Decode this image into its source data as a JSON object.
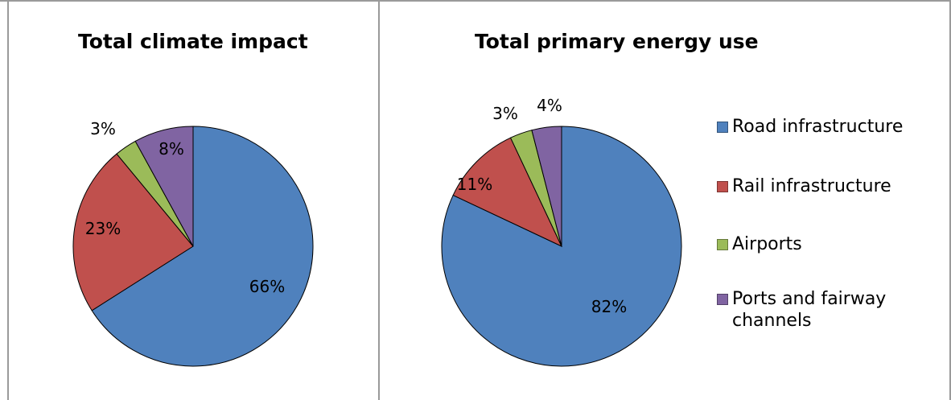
{
  "chart_data": [
    {
      "type": "pie",
      "title": "Total climate impact",
      "categories": [
        "Road infrastructure",
        "Rail infrastructure",
        "Airports",
        "Ports and fairway channels"
      ],
      "values": [
        66,
        23,
        3,
        8
      ],
      "data_labels": [
        "66%",
        "23%",
        "3%",
        "8%"
      ],
      "colors": [
        "#4f81bd",
        "#c0504d",
        "#9bbb59",
        "#8064a2"
      ],
      "legend": "none"
    },
    {
      "type": "pie",
      "title": "Total primary energy use",
      "categories": [
        "Road infrastructure",
        "Rail infrastructure",
        "Airports",
        "Ports and fairway channels"
      ],
      "values": [
        82,
        11,
        3,
        4
      ],
      "data_labels": [
        "82%",
        "11%",
        "3%",
        "4%"
      ],
      "colors": [
        "#4f81bd",
        "#c0504d",
        "#9bbb59",
        "#8064a2"
      ],
      "legend": "right"
    }
  ],
  "legend": {
    "items": [
      {
        "label": "Road infrastructure",
        "color": "#4f81bd"
      },
      {
        "label": "Rail infrastructure",
        "color": "#c0504d"
      },
      {
        "label": "Airports",
        "color": "#9bbb59"
      },
      {
        "label": "Ports and fairway channels",
        "color": "#8064a2"
      }
    ]
  }
}
